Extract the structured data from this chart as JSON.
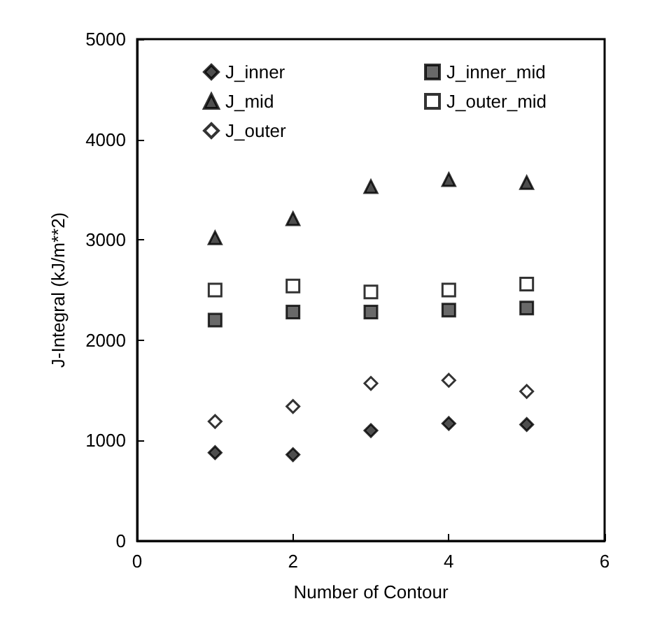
{
  "chart_data": {
    "type": "scatter",
    "xlabel": "Number of Contour",
    "ylabel": "J-Integral (kJ/m**2)",
    "x": [
      1,
      2,
      3,
      4,
      5
    ],
    "series": [
      {
        "name": "J_inner",
        "color": "#222222",
        "marker": "diamond",
        "values": [
          880,
          860,
          1100,
          1170,
          1160
        ]
      },
      {
        "name": "J_mid",
        "color": "#222222",
        "marker": "triangle",
        "values": [
          3020,
          3210,
          3530,
          3600,
          3570
        ]
      },
      {
        "name": "J_outer",
        "color": "#ffffff",
        "marker": "diamond",
        "values": [
          1190,
          1340,
          1570,
          1600,
          1490
        ]
      },
      {
        "name": "J_inner_mid",
        "color": "#444444",
        "marker": "square",
        "values": [
          2200,
          2280,
          2280,
          2300,
          2320
        ]
      },
      {
        "name": "J_outer_mid",
        "color": "#ffffff",
        "marker": "square",
        "values": [
          2500,
          2540,
          2480,
          2500,
          2560
        ]
      }
    ],
    "xlim": [
      0,
      6
    ],
    "xticks": [
      0,
      2,
      4,
      6
    ],
    "ylim": [
      0,
      5000
    ],
    "yticks": [
      0,
      1000,
      2000,
      3000,
      4000,
      5000
    ],
    "grid": false,
    "legend": "top"
  }
}
